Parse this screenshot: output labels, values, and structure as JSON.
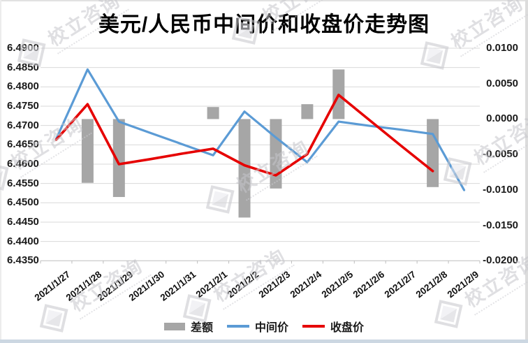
{
  "title": "美元/人民币中间价和收盘价走势图",
  "watermark": {
    "text": "校立咨询"
  },
  "legend": {
    "items": [
      {
        "label": "差额",
        "type": "bar",
        "color": "#a6a6a6"
      },
      {
        "label": "中间价",
        "type": "line",
        "color": "#5b9bd5"
      },
      {
        "label": "收盘价",
        "type": "line",
        "color": "#e60000"
      }
    ]
  },
  "chart_data": {
    "type": "bar",
    "subtype": "combo-bar-line",
    "title": "美元/人民币中间价和收盘价走势图",
    "categories": [
      "2021/1/27",
      "2021/1/28",
      "2021/1/29",
      "2021/1/30",
      "2021/1/31",
      "2021/2/1",
      "2021/2/2",
      "2021/2/3",
      "2021/2/4",
      "2021/2/5",
      "2021/2/6",
      "2021/2/7",
      "2021/2/8",
      "2021/2/9"
    ],
    "series": [
      {
        "name": "差额",
        "type": "bar",
        "axis": "right",
        "color": "#a6a6a6",
        "values": [
          null,
          -0.009,
          -0.011,
          null,
          null,
          0.0017,
          -0.0139,
          -0.0098,
          0.0021,
          0.007,
          null,
          null,
          -0.0096,
          null
        ]
      },
      {
        "name": "中间价",
        "type": "line",
        "axis": "left",
        "color": "#5b9bd5",
        "values": [
          6.4665,
          6.4845,
          6.471,
          6.4681,
          6.4652,
          6.4623,
          6.4736,
          6.4669,
          6.4605,
          6.471,
          6.4699,
          6.4689,
          6.4678,
          6.4533
        ]
      },
      {
        "name": "收盘价",
        "type": "line",
        "axis": "left",
        "color": "#e60000",
        "values": [
          6.4663,
          6.4755,
          6.46,
          6.4613,
          6.4627,
          6.464,
          6.4597,
          6.4571,
          6.4626,
          6.4779,
          6.4713,
          6.4647,
          6.4582,
          null
        ]
      }
    ],
    "left_axis": {
      "min": 6.435,
      "max": 6.49,
      "step": 0.005,
      "labels": [
        "6.4900",
        "6.4850",
        "6.4800",
        "6.4750",
        "6.4700",
        "6.4650",
        "6.4600",
        "6.4550",
        "6.4500",
        "6.4450",
        "6.4400",
        "6.4350"
      ]
    },
    "right_axis": {
      "min": -0.02,
      "max": 0.01,
      "step": 0.005,
      "labels": [
        "0.0100",
        "0.0050",
        "0.0000",
        "-0.0050",
        "-0.0100",
        "-0.0150",
        "-0.0200"
      ]
    },
    "grid": true,
    "legend_position": "bottom",
    "colors": {
      "grid": "#d9d9d9",
      "axis": "#bdbdbd",
      "bar": "#a6a6a6",
      "middle_price": "#5b9bd5",
      "closing_price": "#e60000"
    }
  }
}
